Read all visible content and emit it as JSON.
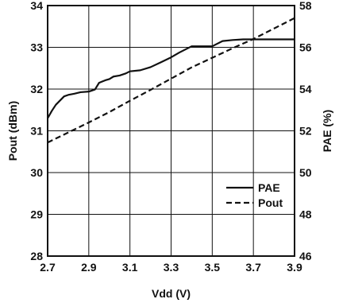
{
  "chart_data": {
    "type": "line",
    "xlabel": "Vdd (V)",
    "ylabel_left": "Pout (dBm)",
    "ylabel_right": "PAE (%)",
    "xlim": [
      2.7,
      3.9
    ],
    "ylim_left": [
      28,
      34
    ],
    "ylim_right": [
      46,
      58
    ],
    "grid": true,
    "legend_position": "lower-right",
    "x_ticks": [
      "2.7",
      "2.9",
      "3.1",
      "3.3",
      "3.5",
      "3.7",
      "3.9"
    ],
    "y_left_ticks": [
      "28",
      "29",
      "30",
      "31",
      "32",
      "33",
      "34"
    ],
    "y_right_ticks": [
      "46",
      "48",
      "50",
      "52",
      "54",
      "56",
      "58"
    ],
    "series": [
      {
        "name": "PAE",
        "axis": "right",
        "line_style": "solid",
        "x": [
          2.7,
          2.72,
          2.74,
          2.76,
          2.78,
          2.8,
          2.83,
          2.86,
          2.9,
          2.93,
          2.95,
          2.98,
          3.0,
          3.02,
          3.05,
          3.08,
          3.1,
          3.15,
          3.2,
          3.25,
          3.3,
          3.34,
          3.38,
          3.4,
          3.45,
          3.5,
          3.52,
          3.55,
          3.6,
          3.65,
          3.7,
          3.8,
          3.9
        ],
        "values": [
          52.6,
          52.95,
          53.25,
          53.45,
          53.65,
          53.72,
          53.78,
          53.85,
          53.88,
          53.98,
          54.3,
          54.42,
          54.48,
          54.6,
          54.65,
          54.75,
          54.85,
          54.9,
          55.05,
          55.28,
          55.52,
          55.75,
          55.95,
          56.05,
          56.05,
          56.05,
          56.15,
          56.3,
          56.35,
          56.38,
          56.38,
          56.38,
          56.38
        ]
      },
      {
        "name": "Pout",
        "axis": "left",
        "line_style": "dashed",
        "x": [
          2.7,
          2.8,
          2.9,
          3.0,
          3.1,
          3.2,
          3.3,
          3.4,
          3.5,
          3.6,
          3.7,
          3.8,
          3.9
        ],
        "values": [
          30.72,
          30.96,
          31.2,
          31.45,
          31.72,
          31.98,
          32.25,
          32.52,
          32.75,
          32.98,
          33.2,
          33.45,
          33.7
        ]
      }
    ]
  }
}
